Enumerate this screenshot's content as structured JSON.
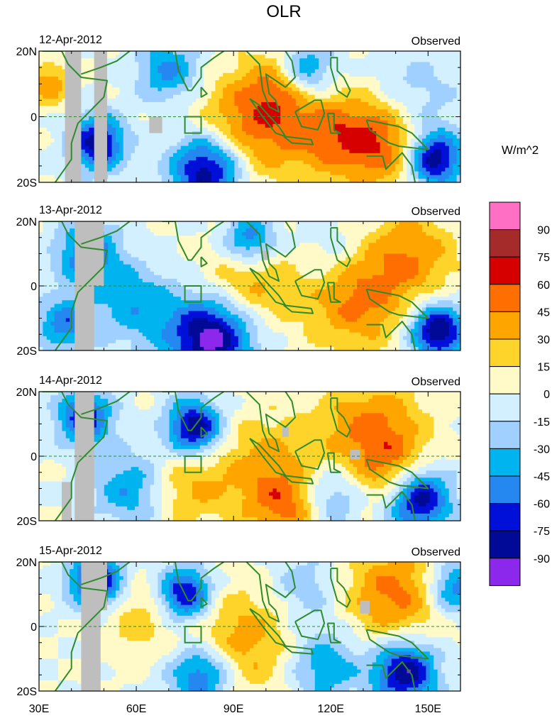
{
  "chart_data": {
    "type": "heatmap",
    "title": "OLR",
    "units_label": "W/m^2",
    "panel_label": "Observed",
    "dates": [
      "12-Apr-2012",
      "13-Apr-2012",
      "14-Apr-2012",
      "15-Apr-2012"
    ],
    "x_ticks": [
      "30E",
      "60E",
      "90E",
      "120E",
      "150E"
    ],
    "x_tick_values": [
      30,
      60,
      90,
      120,
      150
    ],
    "xlim": [
      30,
      160
    ],
    "y_ticks": [
      "20N",
      "0",
      "20S"
    ],
    "y_tick_values": [
      20,
      0,
      -20
    ],
    "ylim": [
      -20,
      20
    ],
    "equator_line": "dashed",
    "reference_box": {
      "lon": [
        75,
        80
      ],
      "lat": [
        -5,
        0
      ]
    },
    "colorbar": {
      "labels": [
        "90",
        "75",
        "60",
        "45",
        "30",
        "15",
        "0",
        "-15",
        "-30",
        "-45",
        "-60",
        "-75",
        "-90"
      ],
      "colors": [
        "#ff70c4",
        "#a52a2a",
        "#d70000",
        "#ff6e00",
        "#ffa500",
        "#ffd42a",
        "#fffac8",
        "#d2f0ff",
        "#a0d0ff",
        "#00b4f0",
        "#2488f0",
        "#0010d8",
        "#000a96",
        "#8c28ec"
      ]
    },
    "land_color": "#2e8b2e",
    "missing_color": "#bebebe"
  }
}
